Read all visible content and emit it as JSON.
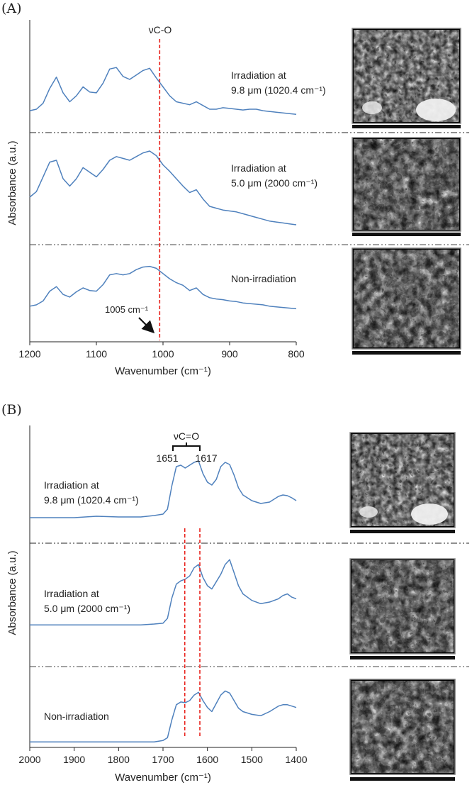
{
  "colors": {
    "spectrum": "#4f81bd",
    "marker": "#e8211b",
    "axis": "#222222"
  },
  "chart_data": [
    {
      "type": "line",
      "panel_label": "(A)",
      "xlabel": "Wavenumber (cm⁻¹)",
      "ylabel": "Absorbance (a.u.)",
      "xlim": [
        1200,
        800
      ],
      "x_reversed": true,
      "xticks": [
        "1200",
        "1100",
        "1000",
        "900",
        "800"
      ],
      "peak_label": "νC-O",
      "marker_lines_cm": [
        1005
      ],
      "arrow_annotation": "1005 cm⁻¹",
      "series": [
        {
          "name": "Irradiation at 9.8 μm (1020.4 cm⁻¹)",
          "label_lines": [
            "Irradiation at",
            "9.8 μm (1020.4 cm⁻¹)"
          ],
          "x": [
            1200,
            1190,
            1180,
            1170,
            1160,
            1150,
            1140,
            1130,
            1120,
            1110,
            1100,
            1090,
            1080,
            1070,
            1060,
            1050,
            1040,
            1030,
            1020,
            1010,
            1000,
            990,
            980,
            970,
            960,
            950,
            940,
            930,
            920,
            910,
            900,
            890,
            880,
            870,
            860,
            850,
            840,
            830,
            820,
            810,
            800
          ],
          "y": [
            0.18,
            0.2,
            0.28,
            0.48,
            0.63,
            0.42,
            0.3,
            0.38,
            0.5,
            0.43,
            0.42,
            0.55,
            0.74,
            0.76,
            0.64,
            0.6,
            0.66,
            0.72,
            0.75,
            0.62,
            0.5,
            0.38,
            0.3,
            0.28,
            0.26,
            0.3,
            0.25,
            0.2,
            0.2,
            0.22,
            0.21,
            0.2,
            0.19,
            0.2,
            0.2,
            0.18,
            0.17,
            0.16,
            0.15,
            0.14,
            0.13
          ]
        },
        {
          "name": "Irradiation at 5.0 μm (2000 cm⁻¹)",
          "label_lines": [
            "Irradiation at",
            "5.0 μm (2000 cm⁻¹)"
          ],
          "x": [
            1200,
            1190,
            1180,
            1170,
            1160,
            1150,
            1140,
            1130,
            1120,
            1110,
            1100,
            1090,
            1080,
            1070,
            1060,
            1050,
            1040,
            1030,
            1020,
            1010,
            1000,
            990,
            980,
            970,
            960,
            950,
            940,
            930,
            920,
            910,
            900,
            890,
            880,
            870,
            860,
            850,
            840,
            830,
            820,
            810,
            800
          ],
          "y": [
            0.4,
            0.46,
            0.62,
            0.78,
            0.8,
            0.6,
            0.52,
            0.6,
            0.72,
            0.67,
            0.62,
            0.7,
            0.8,
            0.84,
            0.82,
            0.8,
            0.84,
            0.88,
            0.9,
            0.85,
            0.75,
            0.68,
            0.6,
            0.52,
            0.45,
            0.48,
            0.38,
            0.3,
            0.28,
            0.26,
            0.25,
            0.24,
            0.22,
            0.2,
            0.18,
            0.16,
            0.14,
            0.13,
            0.12,
            0.11,
            0.1
          ]
        },
        {
          "name": "Non-irradiation",
          "label_lines": [
            "Non-irradiation"
          ],
          "x": [
            1200,
            1190,
            1180,
            1170,
            1160,
            1150,
            1140,
            1130,
            1120,
            1110,
            1100,
            1090,
            1080,
            1070,
            1060,
            1050,
            1040,
            1030,
            1020,
            1010,
            1000,
            990,
            980,
            970,
            960,
            950,
            940,
            930,
            920,
            910,
            900,
            890,
            880,
            870,
            860,
            850,
            840,
            830,
            820,
            810,
            800
          ],
          "y": [
            0.22,
            0.24,
            0.3,
            0.45,
            0.52,
            0.4,
            0.36,
            0.44,
            0.5,
            0.46,
            0.45,
            0.55,
            0.7,
            0.72,
            0.7,
            0.72,
            0.78,
            0.82,
            0.83,
            0.8,
            0.72,
            0.64,
            0.58,
            0.54,
            0.46,
            0.5,
            0.4,
            0.35,
            0.33,
            0.32,
            0.3,
            0.29,
            0.27,
            0.26,
            0.25,
            0.24,
            0.22,
            0.21,
            0.2,
            0.19,
            0.18
          ]
        }
      ]
    },
    {
      "type": "line",
      "panel_label": "(B)",
      "xlabel": "Wavenumber (cm⁻¹)",
      "ylabel": "Absorbance (a.u.)",
      "xlim": [
        2000,
        1400
      ],
      "x_reversed": true,
      "xticks": [
        "2000",
        "1900",
        "1800",
        "1700",
        "1600",
        "1500",
        "1400"
      ],
      "peak_label": "νC=O",
      "peak_values": [
        "1651",
        "1617"
      ],
      "marker_lines_cm": [
        1651,
        1617
      ],
      "series": [
        {
          "name": "Irradiation at 9.8 μm (1020.4 cm⁻¹)",
          "label_lines": [
            "Irradiation at",
            "9.8 μm (1020.4 cm⁻¹)"
          ],
          "x": [
            2000,
            1950,
            1900,
            1850,
            1800,
            1750,
            1720,
            1700,
            1690,
            1680,
            1670,
            1660,
            1650,
            1640,
            1630,
            1620,
            1610,
            1600,
            1590,
            1580,
            1570,
            1560,
            1550,
            1540,
            1530,
            1520,
            1500,
            1480,
            1460,
            1440,
            1430,
            1420,
            1410,
            1400
          ],
          "y": [
            0.1,
            0.1,
            0.1,
            0.12,
            0.11,
            0.11,
            0.13,
            0.15,
            0.22,
            0.55,
            0.82,
            0.84,
            0.8,
            0.84,
            0.88,
            0.9,
            0.72,
            0.6,
            0.56,
            0.64,
            0.82,
            0.88,
            0.85,
            0.7,
            0.52,
            0.42,
            0.34,
            0.3,
            0.32,
            0.4,
            0.42,
            0.41,
            0.38,
            0.34
          ]
        },
        {
          "name": "Irradiation at 5.0 μm (2000 cm⁻¹)",
          "label_lines": [
            "Irradiation at",
            "5.0 μm (2000 cm⁻¹)"
          ],
          "x": [
            2000,
            1950,
            1900,
            1850,
            1800,
            1750,
            1720,
            1700,
            1690,
            1680,
            1670,
            1660,
            1650,
            1640,
            1630,
            1620,
            1610,
            1600,
            1590,
            1580,
            1570,
            1560,
            1550,
            1540,
            1530,
            1520,
            1500,
            1480,
            1460,
            1440,
            1430,
            1420,
            1410,
            1400
          ],
          "y": [
            0.12,
            0.12,
            0.12,
            0.12,
            0.12,
            0.12,
            0.13,
            0.14,
            0.2,
            0.45,
            0.62,
            0.66,
            0.68,
            0.72,
            0.82,
            0.86,
            0.7,
            0.6,
            0.56,
            0.65,
            0.74,
            0.86,
            0.92,
            0.76,
            0.6,
            0.5,
            0.42,
            0.38,
            0.4,
            0.44,
            0.48,
            0.5,
            0.46,
            0.44
          ]
        },
        {
          "name": "Non-irradiation",
          "label_lines": [
            "Non-irradiation"
          ],
          "x": [
            2000,
            1950,
            1900,
            1850,
            1800,
            1750,
            1720,
            1700,
            1690,
            1680,
            1670,
            1660,
            1650,
            1640,
            1630,
            1620,
            1610,
            1600,
            1590,
            1580,
            1570,
            1560,
            1550,
            1540,
            1530,
            1520,
            1500,
            1480,
            1460,
            1440,
            1430,
            1420,
            1410,
            1400
          ],
          "y": [
            0.06,
            0.06,
            0.06,
            0.06,
            0.06,
            0.06,
            0.06,
            0.08,
            0.12,
            0.38,
            0.6,
            0.64,
            0.63,
            0.66,
            0.74,
            0.78,
            0.66,
            0.56,
            0.5,
            0.62,
            0.74,
            0.8,
            0.77,
            0.66,
            0.55,
            0.5,
            0.46,
            0.44,
            0.5,
            0.58,
            0.6,
            0.6,
            0.58,
            0.56
          ]
        }
      ]
    }
  ]
}
